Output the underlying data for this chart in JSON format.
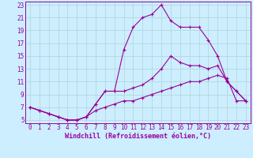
{
  "title": "",
  "xlabel": "Windchill (Refroidissement éolien,°C)",
  "ylabel": "",
  "background_color": "#cceeff",
  "line_color": "#990099",
  "xlim": [
    -0.5,
    23.5
  ],
  "ylim": [
    4.5,
    23.5
  ],
  "xticks": [
    0,
    1,
    2,
    3,
    4,
    5,
    6,
    7,
    8,
    9,
    10,
    11,
    12,
    13,
    14,
    15,
    16,
    17,
    18,
    19,
    20,
    21,
    22,
    23
  ],
  "yticks": [
    5,
    7,
    9,
    11,
    13,
    15,
    17,
    19,
    21,
    23
  ],
  "line1_x": [
    0,
    1,
    2,
    3,
    4,
    5,
    6,
    7,
    8,
    9,
    10,
    11,
    12,
    13,
    14,
    15,
    16,
    17,
    18,
    19,
    20,
    21,
    22,
    23
  ],
  "line1_y": [
    7,
    6.5,
    6,
    5.5,
    5,
    5,
    5.5,
    7.5,
    9.5,
    9.5,
    16,
    19.5,
    21,
    21.5,
    23,
    20.5,
    19.5,
    19.5,
    19.5,
    17.5,
    15,
    11,
    9.5,
    8
  ],
  "line2_x": [
    0,
    1,
    2,
    3,
    4,
    5,
    6,
    7,
    8,
    9,
    10,
    11,
    12,
    13,
    14,
    15,
    16,
    17,
    18,
    19,
    20,
    21,
    22,
    23
  ],
  "line2_y": [
    7,
    6.5,
    6,
    5.5,
    5,
    5,
    5.5,
    7.5,
    9.5,
    9.5,
    9.5,
    10,
    10.5,
    11.5,
    13,
    15,
    14,
    13.5,
    13.5,
    13,
    13.5,
    11,
    9.5,
    8
  ],
  "line3_x": [
    0,
    1,
    2,
    3,
    4,
    5,
    6,
    7,
    8,
    9,
    10,
    11,
    12,
    13,
    14,
    15,
    16,
    17,
    18,
    19,
    20,
    21,
    22,
    23
  ],
  "line3_y": [
    7,
    6.5,
    6,
    5.5,
    5,
    5,
    5.5,
    6.5,
    7,
    7.5,
    8,
    8,
    8.5,
    9,
    9.5,
    10,
    10.5,
    11,
    11,
    11.5,
    12,
    11.5,
    8,
    8
  ],
  "tick_fontsize": 5.5,
  "xlabel_fontsize": 6.0
}
